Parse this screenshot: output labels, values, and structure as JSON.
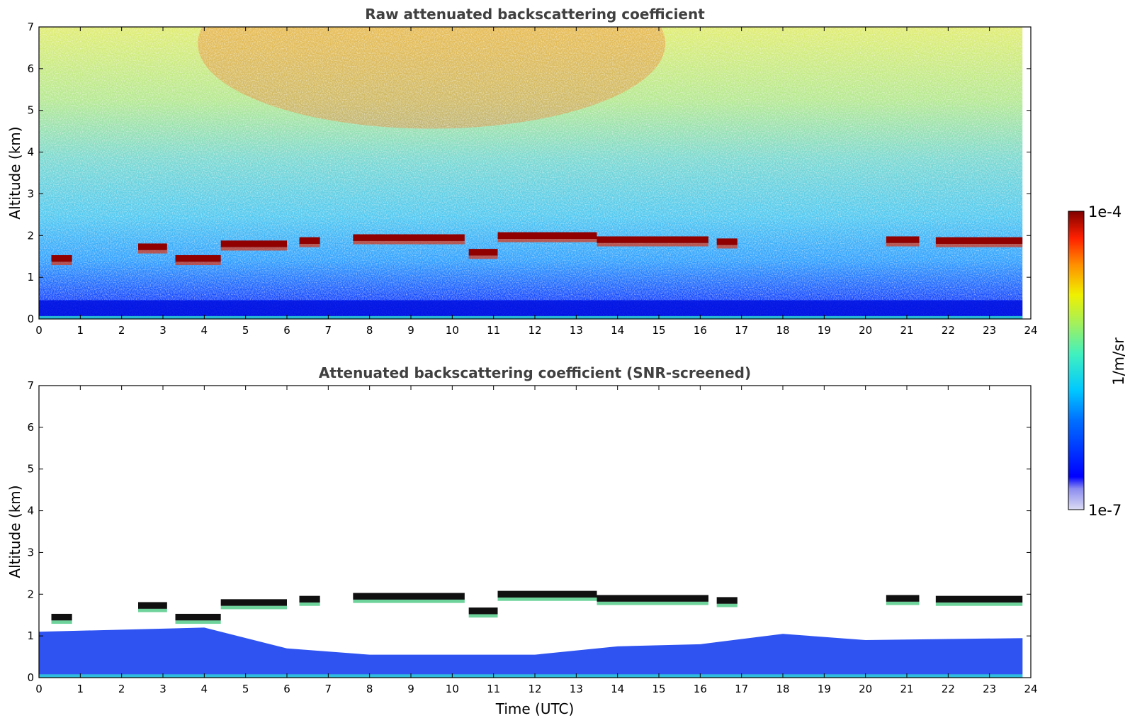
{
  "chart_data": [
    {
      "type": "heatmap",
      "title": "Raw attenuated backscattering coefficient",
      "xlabel": "",
      "ylabel": "Altitude (km)",
      "xlim": [
        0,
        24
      ],
      "ylim": [
        0,
        7
      ],
      "x_ticks": [
        0,
        1,
        2,
        3,
        4,
        5,
        6,
        7,
        8,
        9,
        10,
        11,
        12,
        13,
        14,
        15,
        16,
        17,
        18,
        19,
        20,
        21,
        22,
        23,
        24
      ],
      "y_ticks": [
        0,
        1,
        2,
        3,
        4,
        5,
        6,
        7
      ],
      "x_tick_labels": [
        "0",
        "1",
        "2",
        "3",
        "4",
        "5",
        "6",
        "7",
        "8",
        "9",
        "10",
        "11",
        "12",
        "13",
        "14",
        "15",
        "16",
        "17",
        "18",
        "19",
        "20",
        "21",
        "22",
        "23",
        "24"
      ],
      "y_tick_labels": [
        "0",
        "1",
        "2",
        "3",
        "4",
        "5",
        "6",
        "7"
      ],
      "layer_top_km": [
        {
          "start": 0.3,
          "end": 0.8,
          "alt": 1.45
        },
        {
          "start": 2.4,
          "end": 3.1,
          "alt": 1.73
        },
        {
          "start": 3.3,
          "end": 4.4,
          "alt": 1.45
        },
        {
          "start": 4.4,
          "end": 6.0,
          "alt": 1.8
        },
        {
          "start": 6.3,
          "end": 6.8,
          "alt": 1.88
        },
        {
          "start": 7.6,
          "end": 10.3,
          "alt": 1.95
        },
        {
          "start": 10.4,
          "end": 11.1,
          "alt": 1.6
        },
        {
          "start": 11.1,
          "end": 13.5,
          "alt": 2.0
        },
        {
          "start": 13.5,
          "end": 16.2,
          "alt": 1.9
        },
        {
          "start": 16.4,
          "end": 16.9,
          "alt": 1.85
        },
        {
          "start": 20.5,
          "end": 21.3,
          "alt": 1.9
        },
        {
          "start": 21.7,
          "end": 23.8,
          "alt": 1.88
        }
      ],
      "data_end_hour": 23.8
    },
    {
      "type": "heatmap",
      "title": "Attenuated backscattering coefficient (SNR-screened)",
      "xlabel": "Time (UTC)",
      "ylabel": "Altitude (km)",
      "xlim": [
        0,
        24
      ],
      "ylim": [
        0,
        7
      ],
      "x_ticks": [
        0,
        1,
        2,
        3,
        4,
        5,
        6,
        7,
        8,
        9,
        10,
        11,
        12,
        13,
        14,
        15,
        16,
        17,
        18,
        19,
        20,
        21,
        22,
        23,
        24
      ],
      "y_ticks": [
        0,
        1,
        2,
        3,
        4,
        5,
        6,
        7
      ],
      "x_tick_labels": [
        "0",
        "1",
        "2",
        "3",
        "4",
        "5",
        "6",
        "7",
        "8",
        "9",
        "10",
        "11",
        "12",
        "13",
        "14",
        "15",
        "16",
        "17",
        "18",
        "19",
        "20",
        "21",
        "22",
        "23",
        "24"
      ],
      "y_tick_labels": [
        "0",
        "1",
        "2",
        "3",
        "4",
        "5",
        "6",
        "7"
      ],
      "boundary_layer_top_km": [
        {
          "hour": 0,
          "alt": 1.1
        },
        {
          "hour": 4,
          "alt": 1.2
        },
        {
          "hour": 6,
          "alt": 0.7
        },
        {
          "hour": 8,
          "alt": 0.55
        },
        {
          "hour": 12,
          "alt": 0.55
        },
        {
          "hour": 14,
          "alt": 0.75
        },
        {
          "hour": 16,
          "alt": 0.8
        },
        {
          "hour": 18,
          "alt": 1.05
        },
        {
          "hour": 20,
          "alt": 0.9
        },
        {
          "hour": 24,
          "alt": 0.95
        }
      ],
      "data_end_hour": 23.8
    }
  ],
  "colorbar": {
    "label": "1/m/sr",
    "max_label": "1e-4",
    "min_label": "1e-7",
    "min_value": 1e-07,
    "max_value": 0.0001,
    "scale": "log",
    "colormap": "jet"
  }
}
